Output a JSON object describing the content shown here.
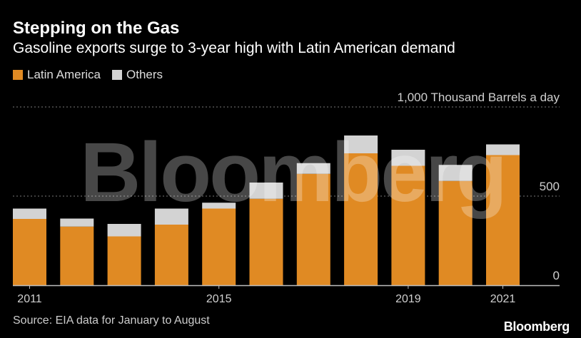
{
  "title": "Stepping on the Gas",
  "subtitle": "Gasoline exports surge to 3-year high with Latin American demand",
  "legend": [
    {
      "label": "Latin America",
      "color": "#e08a23"
    },
    {
      "label": "Others",
      "color": "#d3d3d3"
    }
  ],
  "source": "Source: EIA data for January to August",
  "brand": "Bloomberg",
  "watermark": "Bloomberg",
  "unit_label": "1,000 Thousand Barrels a day",
  "chart_data": {
    "type": "bar",
    "stacked": true,
    "title": "Stepping on the Gas",
    "ylabel": "Thousand Barrels a day",
    "ylim": [
      0,
      1000
    ],
    "yticks": [
      0,
      500,
      1000
    ],
    "categories": [
      "2011",
      "2012",
      "2013",
      "2014",
      "2015",
      "2016",
      "2017",
      "2018",
      "2019",
      "2020",
      "2021"
    ],
    "x_tick_labels": [
      "2011",
      "2015",
      "2019",
      "2021"
    ],
    "series": [
      {
        "name": "Latin America",
        "color": "#e08a23",
        "values": [
          372,
          329,
          274,
          340,
          430,
          485,
          625,
          740,
          670,
          585,
          730
        ]
      },
      {
        "name": "Others",
        "color": "#d3d3d3",
        "values": [
          58,
          45,
          70,
          90,
          33,
          91,
          60,
          100,
          90,
          90,
          60
        ]
      }
    ]
  }
}
